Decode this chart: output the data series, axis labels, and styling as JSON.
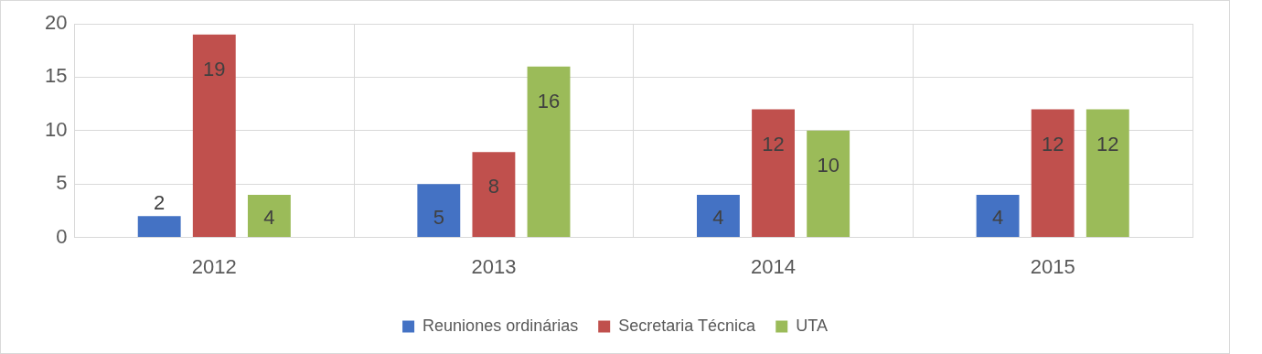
{
  "chart_data": {
    "type": "bar",
    "categories": [
      "2012",
      "2013",
      "2014",
      "2015"
    ],
    "series": [
      {
        "name": "Reuniones ordinárias",
        "color": "#4472c4",
        "values": [
          2,
          5,
          4,
          4
        ]
      },
      {
        "name": "Secretaria Técnica",
        "color": "#c0504d",
        "values": [
          19,
          8,
          12,
          12
        ]
      },
      {
        "name": "UTA",
        "color": "#9bbb59",
        "values": [
          4,
          16,
          10,
          12
        ]
      }
    ],
    "ylim": [
      0,
      20
    ],
    "yticks": [
      0,
      5,
      10,
      15,
      20
    ],
    "grid": true,
    "legend": "bottom",
    "data_labels": true
  }
}
